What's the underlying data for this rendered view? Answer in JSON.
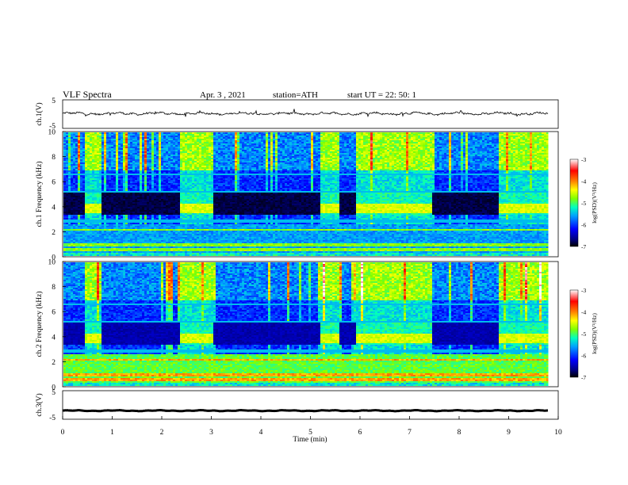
{
  "header": {
    "title": "VLF Spectra",
    "date": "Apr. 3 , 2021",
    "station": "station=ATH",
    "start": "start UT = 22: 50: 1"
  },
  "chart_data": [
    {
      "type": "line",
      "panel": "ch1-waveform",
      "ylabel": "ch.1(V)",
      "ylim": [
        -5,
        5
      ],
      "yticks": [
        "5",
        "-5"
      ],
      "x_range": [
        0,
        9.8
      ],
      "mean_value": 0.2,
      "amplitude": 0.6
    },
    {
      "type": "heatmap",
      "panel": "ch1-spectrogram",
      "ylabel": "ch.1 Frequency (kHz)",
      "ylim": [
        0,
        10
      ],
      "yticks": [
        "0",
        "2",
        "4",
        "6",
        "8",
        "10"
      ],
      "x_range": [
        0,
        9.8
      ],
      "colorbar": {
        "label": "log(PSD)(V²/Hz)",
        "ticks": [
          "-3",
          "-4",
          "-5",
          "-6",
          "-7"
        ],
        "range": [
          -7,
          -3
        ]
      },
      "bright_bands_min": [
        [
          0.42,
          0.75
        ],
        [
          2.35,
          3.03
        ],
        [
          5.2,
          5.55
        ],
        [
          5.88,
          7.42
        ],
        [
          8.8,
          9.8
        ]
      ],
      "dark_band_khz": [
        3.4,
        5.3
      ]
    },
    {
      "type": "heatmap",
      "panel": "ch2-spectrogram",
      "ylabel": "ch.2 Frequency (kHz)",
      "ylim": [
        0,
        10
      ],
      "yticks": [
        "0",
        "2",
        "4",
        "6",
        "8",
        "10"
      ],
      "x_range": [
        0,
        9.8
      ],
      "colorbar": {
        "label": "log(PSD)(V²/Hz)",
        "ticks": [
          "-3",
          "-4",
          "-5",
          "-6",
          "-7"
        ],
        "range": [
          -7,
          -3
        ]
      },
      "bright_bands_min": [
        [
          0.42,
          0.75
        ],
        [
          2.35,
          3.03
        ],
        [
          5.2,
          5.55
        ],
        [
          5.88,
          7.42
        ],
        [
          8.8,
          9.8
        ]
      ],
      "dark_band_khz": [
        3.4,
        5.3
      ]
    },
    {
      "type": "line",
      "panel": "ch3-waveform",
      "ylabel": "ch.3(V)",
      "ylim": [
        -5,
        5
      ],
      "yticks": [
        "5",
        "-5"
      ],
      "x_range": [
        0,
        9.8
      ],
      "mean_value": -2.0,
      "amplitude": 0.25
    }
  ],
  "x_axis": {
    "label": "Time (min)",
    "ticks": [
      "0",
      "1",
      "2",
      "3",
      "4",
      "5",
      "6",
      "7",
      "8",
      "9",
      "10"
    ],
    "range": [
      0,
      10
    ]
  },
  "colors": {
    "background": "#ffffff",
    "trace": "#000000",
    "colormap": [
      "#000000",
      "#00007f",
      "#0000ff",
      "#00a0ff",
      "#00ffc0",
      "#80ff00",
      "#ffff00",
      "#ff8000",
      "#ff0000",
      "#ffffff"
    ]
  }
}
